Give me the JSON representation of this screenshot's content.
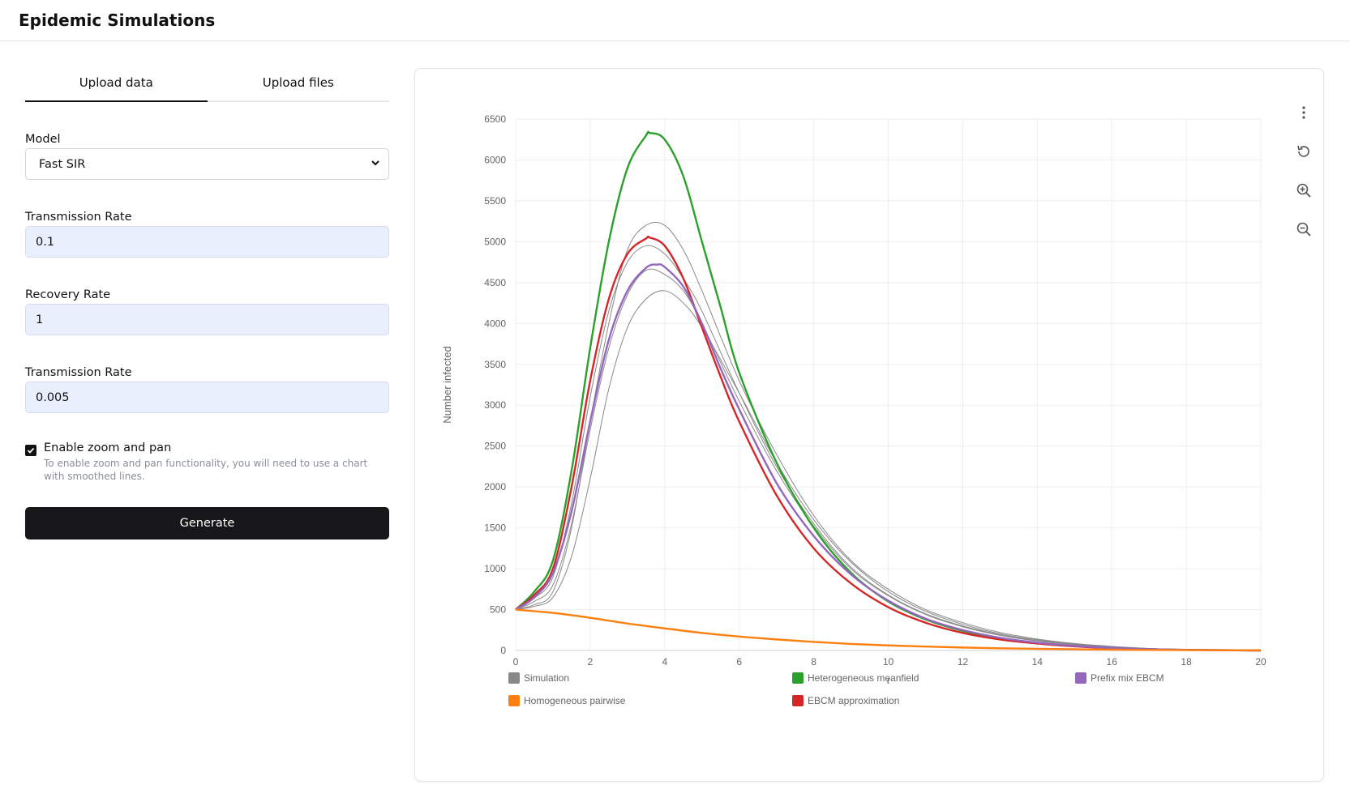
{
  "app": {
    "title": "Epidemic Simulations"
  },
  "tabs": [
    {
      "label": "Upload data",
      "active": true
    },
    {
      "label": "Upload files",
      "active": false
    }
  ],
  "form": {
    "model": {
      "label": "Model",
      "value": "Fast SIR",
      "options": [
        "Fast SIR"
      ]
    },
    "transmission_rate": {
      "label": "Transmission Rate",
      "value": "0.1"
    },
    "recovery_rate": {
      "label": "Recovery Rate",
      "value": "1"
    },
    "transmission_rate_2": {
      "label": "Transmission Rate",
      "value": "0.005"
    },
    "zoom": {
      "label": "Enable zoom and pan",
      "checked": true,
      "help": "To enable zoom and pan functionality, you will need to use a chart with smoothed lines."
    },
    "generate_label": "Generate"
  },
  "toolbar": {
    "icons": [
      "more-vertical-icon",
      "reset-icon",
      "zoom-in-icon",
      "zoom-out-icon"
    ]
  },
  "chart_data": {
    "type": "line",
    "title": "",
    "xlabel": "t",
    "ylabel": "Number infected",
    "xlim": [
      0,
      20
    ],
    "ylim": [
      0,
      6500
    ],
    "xticks": [
      0,
      2,
      4,
      6,
      8,
      10,
      12,
      14,
      16,
      18,
      20
    ],
    "yticks": [
      0,
      500,
      1000,
      1500,
      2000,
      2500,
      3000,
      3500,
      4000,
      4500,
      5000,
      5500,
      6000,
      6500
    ],
    "grid": true,
    "legend_position": "bottom",
    "legend": [
      {
        "name": "Simulation",
        "color": "#888888"
      },
      {
        "name": "Heterogeneous meanfield",
        "color": "#2ca02c"
      },
      {
        "name": "Prefix mix EBCM",
        "color": "#9467bd"
      },
      {
        "name": "Homogeneous pairwise",
        "color": "#ff7f0e"
      },
      {
        "name": "EBCM approximation",
        "color": "#d62728"
      }
    ],
    "series": [
      {
        "name": "Simulation",
        "color": "#888888",
        "width": 1,
        "x": [
          0,
          0.5,
          1,
          1.5,
          2,
          2.5,
          3,
          3.5,
          4,
          4.5,
          5,
          6,
          7,
          8,
          9,
          10,
          11,
          12,
          13,
          14,
          15,
          16,
          17,
          18,
          20
        ],
        "y": [
          500,
          560,
          720,
          1500,
          2800,
          4000,
          4900,
          5200,
          5200,
          4900,
          4400,
          3300,
          2400,
          1650,
          1100,
          750,
          500,
          340,
          220,
          140,
          85,
          50,
          25,
          12,
          0
        ]
      },
      {
        "name": "Simulation",
        "color": "#888888",
        "width": 1,
        "x": [
          0,
          0.5,
          1,
          1.5,
          2,
          2.5,
          3,
          3.5,
          4,
          4.5,
          5,
          6,
          7,
          8,
          9,
          10,
          11,
          12,
          13,
          14,
          15,
          16,
          17,
          18,
          20
        ],
        "y": [
          500,
          640,
          900,
          1800,
          3100,
          4150,
          4750,
          4950,
          4850,
          4550,
          4150,
          3150,
          2250,
          1550,
          1020,
          680,
          450,
          300,
          195,
          120,
          75,
          42,
          22,
          10,
          0
        ]
      },
      {
        "name": "Simulation",
        "color": "#888888",
        "width": 1,
        "x": [
          0,
          0.5,
          1,
          1.5,
          2,
          2.5,
          3,
          3.5,
          4,
          4.5,
          5,
          6,
          7,
          8,
          9,
          10,
          11,
          12,
          13,
          14,
          15,
          16,
          17,
          18,
          20
        ],
        "y": [
          500,
          600,
          800,
          1550,
          2700,
          3700,
          4350,
          4650,
          4600,
          4400,
          4000,
          3050,
          2200,
          1520,
          1000,
          670,
          440,
          290,
          185,
          115,
          70,
          40,
          20,
          10,
          0
        ]
      },
      {
        "name": "Simulation",
        "color": "#888888",
        "width": 1,
        "x": [
          0,
          0.5,
          1,
          1.5,
          2,
          2.5,
          3,
          3.5,
          4,
          4.5,
          5,
          6,
          7,
          8,
          9,
          10,
          11,
          12,
          13,
          14,
          15,
          16,
          17,
          18,
          20
        ],
        "y": [
          500,
          540,
          650,
          1150,
          2100,
          3200,
          3950,
          4300,
          4400,
          4250,
          3950,
          3150,
          2300,
          1600,
          1080,
          720,
          480,
          320,
          205,
          130,
          80,
          45,
          24,
          11,
          0
        ]
      },
      {
        "name": "Heterogeneous meanfield",
        "color": "#2ca02c",
        "width": 2.4,
        "x": [
          0,
          0.5,
          1,
          1.5,
          2,
          2.5,
          3,
          3.5,
          3.6,
          4,
          4.5,
          5,
          5.5,
          6,
          7,
          8,
          9,
          10,
          11,
          12,
          13,
          14,
          15,
          16,
          17,
          18,
          20
        ],
        "y": [
          500,
          720,
          1100,
          2200,
          3700,
          5000,
          5900,
          6300,
          6330,
          6250,
          5800,
          5000,
          4200,
          3400,
          2300,
          1500,
          950,
          600,
          380,
          240,
          150,
          90,
          55,
          30,
          15,
          8,
          0
        ]
      },
      {
        "name": "EBCM approximation",
        "color": "#d62728",
        "width": 2.4,
        "x": [
          0,
          0.5,
          1,
          1.5,
          2,
          2.5,
          3,
          3.5,
          3.6,
          4,
          4.5,
          5,
          5.5,
          6,
          7,
          8,
          9,
          10,
          11,
          12,
          13,
          14,
          15,
          16,
          17,
          18,
          20
        ],
        "y": [
          500,
          680,
          1000,
          2000,
          3300,
          4300,
          4850,
          5040,
          5050,
          4950,
          4550,
          3950,
          3350,
          2800,
          1900,
          1250,
          820,
          530,
          340,
          215,
          135,
          85,
          50,
          28,
          14,
          7,
          0
        ]
      },
      {
        "name": "Prefix mix EBCM",
        "color": "#9467bd",
        "width": 2.4,
        "x": [
          0,
          0.5,
          1,
          1.5,
          2,
          2.5,
          3,
          3.5,
          3.8,
          4,
          4.5,
          5,
          5.5,
          6,
          7,
          8,
          9,
          10,
          11,
          12,
          13,
          14,
          15,
          16,
          17,
          18,
          20
        ],
        "y": [
          500,
          650,
          950,
          1700,
          2800,
          3800,
          4400,
          4680,
          4720,
          4690,
          4450,
          4000,
          3450,
          2950,
          2050,
          1400,
          930,
          610,
          390,
          250,
          155,
          95,
          57,
          32,
          16,
          8,
          0
        ]
      },
      {
        "name": "Homogeneous pairwise",
        "color": "#ff7f0e",
        "width": 2.4,
        "x": [
          0,
          1,
          2,
          3,
          4,
          5,
          6,
          7,
          8,
          9,
          10,
          11,
          12,
          13,
          14,
          15,
          16,
          17,
          18,
          19,
          20
        ],
        "y": [
          500,
          460,
          400,
          330,
          270,
          215,
          170,
          135,
          105,
          80,
          62,
          48,
          36,
          27,
          20,
          15,
          10,
          7,
          5,
          3,
          2
        ]
      }
    ]
  }
}
